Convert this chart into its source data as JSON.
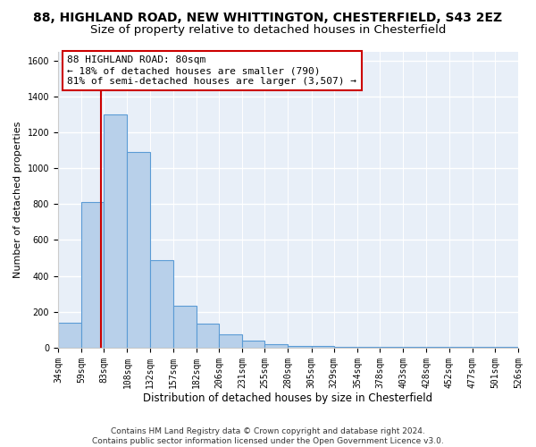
{
  "title1": "88, HIGHLAND ROAD, NEW WHITTINGTON, CHESTERFIELD, S43 2EZ",
  "title2": "Size of property relative to detached houses in Chesterfield",
  "xlabel": "Distribution of detached houses by size in Chesterfield",
  "ylabel": "Number of detached properties",
  "bin_edges": [
    34,
    59,
    83,
    108,
    132,
    157,
    182,
    206,
    231,
    255,
    280,
    305,
    329,
    354,
    378,
    403,
    428,
    452,
    477,
    501,
    526
  ],
  "bar_heights": [
    140,
    810,
    1300,
    1090,
    490,
    235,
    135,
    75,
    40,
    20,
    10,
    10,
    5,
    5,
    5,
    5,
    5,
    5,
    5,
    5
  ],
  "bar_color": "#b8d0ea",
  "bar_edge_color": "#5b9bd5",
  "background_color": "#e8eff8",
  "grid_color": "#ffffff",
  "red_line_x": 80,
  "annotation_text": "88 HIGHLAND ROAD: 80sqm\n← 18% of detached houses are smaller (790)\n81% of semi-detached houses are larger (3,507) →",
  "ylim": [
    0,
    1650
  ],
  "yticks": [
    0,
    200,
    400,
    600,
    800,
    1000,
    1200,
    1400,
    1600
  ],
  "footer": "Contains HM Land Registry data © Crown copyright and database right 2024.\nContains public sector information licensed under the Open Government Licence v3.0.",
  "title1_fontsize": 10,
  "title2_fontsize": 9.5,
  "xlabel_fontsize": 8.5,
  "ylabel_fontsize": 8,
  "tick_fontsize": 7,
  "annotation_fontsize": 8,
  "footer_fontsize": 6.5
}
